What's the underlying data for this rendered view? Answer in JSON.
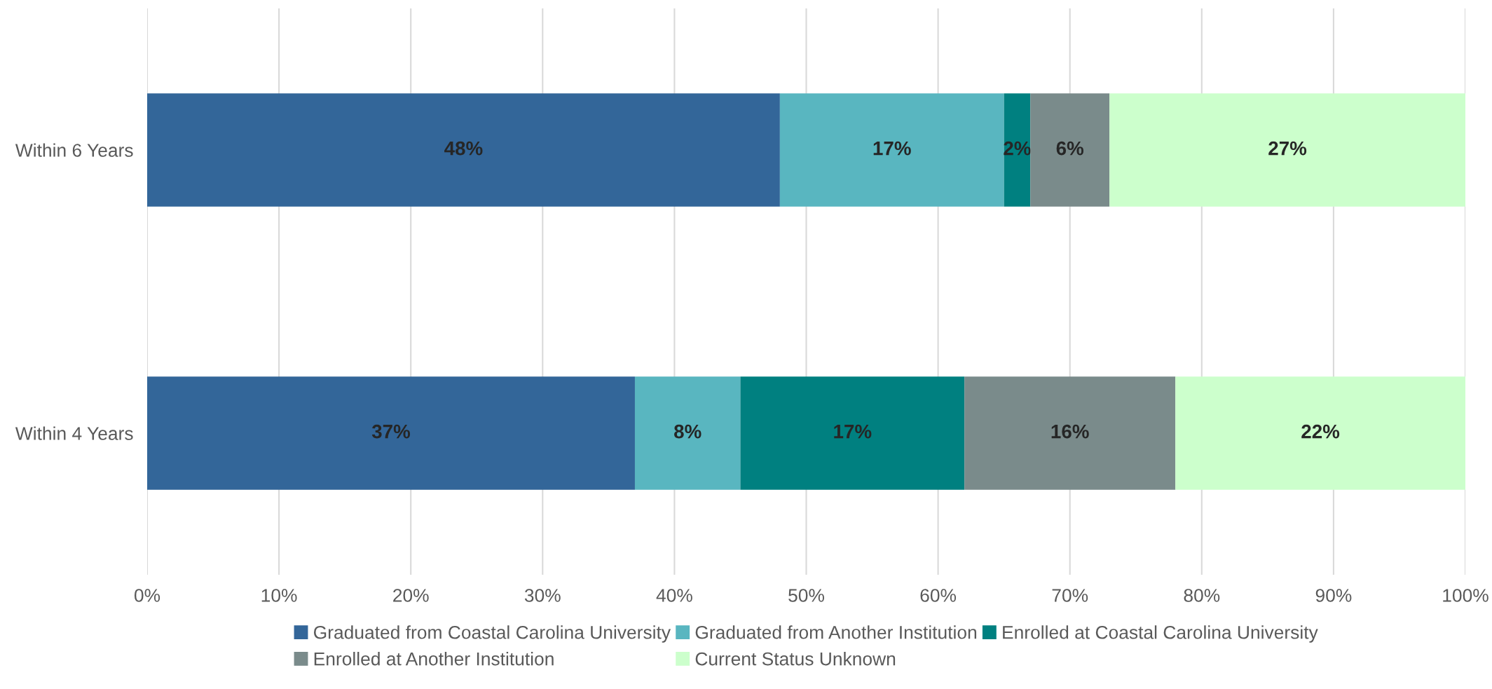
{
  "chart_data": {
    "type": "bar",
    "orientation": "horizontal",
    "stacked": true,
    "categories": [
      "Within 6 Years",
      "Within 4 Years"
    ],
    "series": [
      {
        "name": "Graduated from Coastal Carolina University",
        "color": "#336699",
        "values": [
          48,
          37
        ],
        "value_labels": [
          "48%",
          "37%"
        ]
      },
      {
        "name": "Graduated from Another Institution",
        "color": "#59b6c0",
        "values": [
          17,
          8
        ],
        "value_labels": [
          "17%",
          "8%"
        ]
      },
      {
        "name": "Enrolled at Coastal Carolina University",
        "color": "#008080",
        "values": [
          2,
          17
        ],
        "value_labels": [
          "2%",
          "17%"
        ]
      },
      {
        "name": "Enrolled at Another Institution",
        "color": "#7a8b8b",
        "values": [
          6,
          16
        ],
        "value_labels": [
          "6%",
          "16%"
        ]
      },
      {
        "name": "Current Status Unknown",
        "color": "#ccffcc",
        "values": [
          27,
          22
        ],
        "value_labels": [
          "27%",
          "22%"
        ]
      }
    ],
    "xlim": [
      0,
      100
    ],
    "xticks": [
      {
        "value": 0,
        "label": "0%"
      },
      {
        "value": 10,
        "label": "10%"
      },
      {
        "value": 20,
        "label": "20%"
      },
      {
        "value": 30,
        "label": "30%"
      },
      {
        "value": 40,
        "label": "40%"
      },
      {
        "value": 50,
        "label": "50%"
      },
      {
        "value": 60,
        "label": "60%"
      },
      {
        "value": 70,
        "label": "70%"
      },
      {
        "value": 80,
        "label": "80%"
      },
      {
        "value": 90,
        "label": "90%"
      },
      {
        "value": 100,
        "label": "100%"
      }
    ],
    "grid": "x",
    "legend": "bottom"
  }
}
